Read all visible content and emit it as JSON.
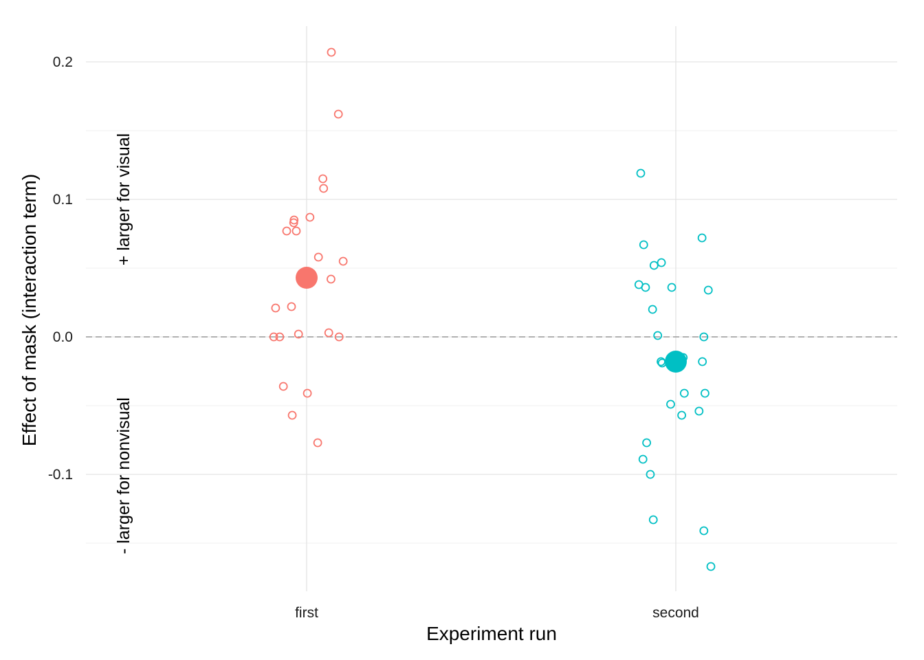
{
  "chart_data": {
    "type": "scatter",
    "title": "",
    "xlabel": "Experiment run",
    "ylabel": "Effect of mask (interaction term)",
    "categories": [
      "first",
      "second"
    ],
    "y_ticks": [
      0.2,
      0.1,
      0.0,
      -0.1
    ],
    "y_tick_labels": [
      "0.2",
      "0.1",
      "0.0",
      "-0.1"
    ],
    "ylim": [
      -0.185,
      0.225
    ],
    "grid": true,
    "legend": "none",
    "reference_line": {
      "y": 0.0,
      "style": "dashed",
      "color": "#999999"
    },
    "annotations": {
      "positive": "+ larger for visual",
      "negative": "- larger for nonvisual"
    },
    "series": [
      {
        "category": "first",
        "color": "#F8766D",
        "mean": 0.043,
        "points": [
          {
            "dx": 0.067,
            "y": 0.207
          },
          {
            "dx": 0.086,
            "y": 0.162
          },
          {
            "dx": 0.044,
            "y": 0.115
          },
          {
            "dx": 0.046,
            "y": 0.108
          },
          {
            "dx": 0.009,
            "y": 0.087
          },
          {
            "dx": -0.034,
            "y": 0.085
          },
          {
            "dx": -0.035,
            "y": 0.083
          },
          {
            "dx": -0.054,
            "y": 0.077
          },
          {
            "dx": -0.028,
            "y": 0.077
          },
          {
            "dx": 0.032,
            "y": 0.058
          },
          {
            "dx": 0.099,
            "y": 0.055
          },
          {
            "dx": 0.066,
            "y": 0.042
          },
          {
            "dx": -0.041,
            "y": 0.022
          },
          {
            "dx": -0.084,
            "y": 0.021
          },
          {
            "dx": -0.022,
            "y": 0.002
          },
          {
            "dx": 0.06,
            "y": 0.003
          },
          {
            "dx": -0.089,
            "y": 0.0
          },
          {
            "dx": -0.073,
            "y": 0.0
          },
          {
            "dx": 0.088,
            "y": 0.0
          },
          {
            "dx": -0.063,
            "y": -0.036
          },
          {
            "dx": 0.002,
            "y": -0.041
          },
          {
            "dx": -0.039,
            "y": -0.057
          },
          {
            "dx": 0.03,
            "y": -0.077
          }
        ]
      },
      {
        "category": "second",
        "color": "#00BFC4",
        "mean": -0.018,
        "points": [
          {
            "dx": -0.095,
            "y": 0.119
          },
          {
            "dx": 0.071,
            "y": 0.072
          },
          {
            "dx": -0.087,
            "y": 0.067
          },
          {
            "dx": -0.039,
            "y": 0.054
          },
          {
            "dx": -0.059,
            "y": 0.052
          },
          {
            "dx": -0.1,
            "y": 0.038
          },
          {
            "dx": -0.082,
            "y": 0.036
          },
          {
            "dx": -0.011,
            "y": 0.036
          },
          {
            "dx": 0.088,
            "y": 0.034
          },
          {
            "dx": -0.063,
            "y": 0.02
          },
          {
            "dx": -0.049,
            "y": 0.001
          },
          {
            "dx": 0.076,
            "y": 0.0
          },
          {
            "dx": 0.02,
            "y": -0.015
          },
          {
            "dx": -0.037,
            "y": -0.019
          },
          {
            "dx": -0.04,
            "y": -0.018
          },
          {
            "dx": 0.072,
            "y": -0.018
          },
          {
            "dx": 0.023,
            "y": -0.041
          },
          {
            "dx": 0.079,
            "y": -0.041
          },
          {
            "dx": -0.014,
            "y": -0.049
          },
          {
            "dx": 0.063,
            "y": -0.054
          },
          {
            "dx": 0.016,
            "y": -0.057
          },
          {
            "dx": -0.079,
            "y": -0.077
          },
          {
            "dx": -0.089,
            "y": -0.089
          },
          {
            "dx": -0.069,
            "y": -0.1
          },
          {
            "dx": -0.061,
            "y": -0.133
          },
          {
            "dx": 0.076,
            "y": -0.141
          },
          {
            "dx": 0.095,
            "y": -0.167
          }
        ]
      }
    ]
  }
}
